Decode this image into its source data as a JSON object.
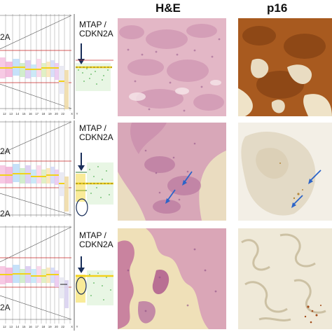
{
  "headers": {
    "he": "H&E",
    "p16": "p16"
  },
  "rows": [
    {
      "gene_label_1": "MTAP /",
      "gene_label_2": "CDKN2A",
      "edge_label_top": "2A",
      "edge_label_bottom": "",
      "circled_region": false,
      "he_arrows": 0,
      "p16_arrows": 0,
      "p16_staining": "diffuse strong"
    },
    {
      "gene_label_1": "MTAP /",
      "gene_label_2": "CDKN2A",
      "edge_label_top": "2A",
      "edge_label_bottom": "2A",
      "circled_region": true,
      "he_arrows": 2,
      "p16_arrows": 2,
      "p16_staining": "focal"
    },
    {
      "gene_label_1": "MTAP /",
      "gene_label_2": "CDKN2A",
      "edge_label_top": "",
      "edge_label_bottom": "2A",
      "circled_region": true,
      "he_arrows": 0,
      "p16_arrows": 0,
      "p16_staining": "negative"
    }
  ],
  "chromosome_ticks": [
    "12",
    "13",
    "14",
    "15",
    "16",
    "17",
    "18",
    "19",
    "20",
    "22",
    "",
    "X",
    "Y"
  ],
  "colors": {
    "he_background": "#e9c6cf",
    "he_dark": "#b56f9b",
    "p16_positive": "#a85a1f",
    "p16_negative_bg": "#ece6d8",
    "threshold_line": "#c62828",
    "arrow": "#2c64c8",
    "segment": "#f2d21a"
  }
}
